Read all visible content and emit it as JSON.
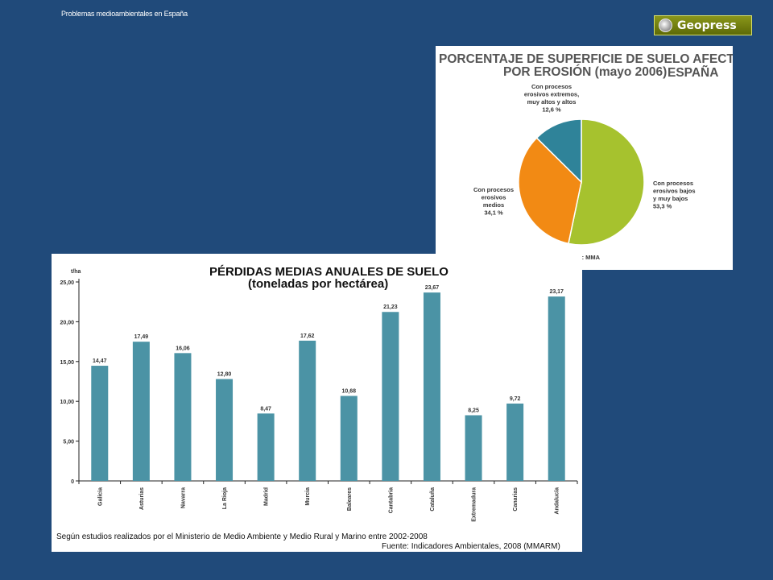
{
  "slide": {
    "title": "Problemas medioambientales en España",
    "logo_text": "Geopress"
  },
  "chart_data": [
    {
      "type": "pie",
      "title": "PORCENTAJE DE SUPERFICIE DE SUELO AFECTADO",
      "title_line2": "POR EROSIÓN (mayo 2006)",
      "region": "ESPAÑA",
      "source": "Fuente: MMA",
      "slices": [
        {
          "lines": [
            "Con procesos",
            "erosivos bajos",
            "y muy bajos",
            "53,3 %"
          ],
          "value": 53.3,
          "color": "#a6c22e"
        },
        {
          "lines": [
            "Con procesos",
            "erosivos",
            "medios",
            "34,1 %"
          ],
          "value": 34.1,
          "color": "#f28a14"
        },
        {
          "lines": [
            "Con procesos",
            "erosivos extremos,",
            "muy altos y altos",
            "12,6 %"
          ],
          "value": 12.6,
          "color": "#2f8399"
        }
      ]
    },
    {
      "type": "bar",
      "title": "PÉRDIDAS MEDIAS ANUALES DE SUELO",
      "subtitle": "(toneladas por hectárea)",
      "ylabel": "t/ha",
      "ylim": [
        0,
        25
      ],
      "yticks": [
        "0",
        "5,00",
        "10,00",
        "15,00",
        "20,00",
        "25,00"
      ],
      "categories": [
        "Galicia",
        "Asturias",
        "Navarra",
        "La Rioja",
        "Madrid",
        "Murcia",
        "Baleares",
        "Cantabria",
        "Cataluña",
        "Extremadura",
        "Canarias",
        "Andalucía"
      ],
      "values": [
        14.47,
        17.49,
        16.06,
        12.8,
        8.47,
        17.62,
        10.68,
        21.23,
        23.67,
        8.25,
        9.72,
        23.17
      ],
      "value_labels": [
        "14,47",
        "17,49",
        "16,06",
        "12,80",
        "8,47",
        "17,62",
        "10,68",
        "21,23",
        "23,67",
        "8,25",
        "9,72",
        "23,17"
      ],
      "bar_color": "#4b93a5",
      "note": "Según estudios realizados por el Ministerio de Medio Ambiente y Medio Rural y Marino entre 2002-2008",
      "source": "Fuente: Indicadores Ambientales, 2008 (MMARM)"
    }
  ]
}
